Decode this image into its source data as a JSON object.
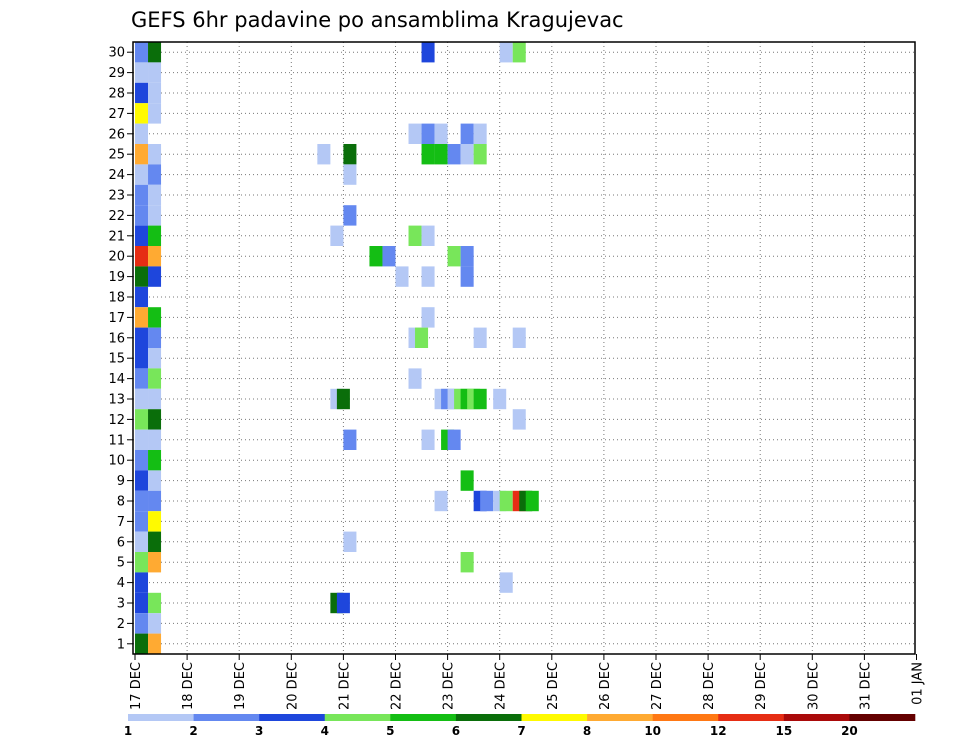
{
  "chart_data": {
    "type": "heatmap",
    "title": "GEFS 6hr padavine po ansamblima Kragujevac",
    "xlabel": "",
    "ylabel": "",
    "x_tick_labels": [
      "17 DEC",
      "18 DEC",
      "19 DEC",
      "20 DEC",
      "21 DEC",
      "22 DEC",
      "23 DEC",
      "24 DEC",
      "25 DEC",
      "26 DEC",
      "27 DEC",
      "28 DEC",
      "29 DEC",
      "30 DEC",
      "31 DEC",
      "01 JAN"
    ],
    "y_tick_labels": [
      "1",
      "2",
      "3",
      "4",
      "5",
      "6",
      "7",
      "8",
      "9",
      "10",
      "11",
      "12",
      "13",
      "14",
      "15",
      "16",
      "17",
      "18",
      "19",
      "20",
      "21",
      "22",
      "23",
      "24",
      "25",
      "26",
      "27",
      "28",
      "29",
      "30"
    ],
    "xlim": [
      0,
      60
    ],
    "ylim": [
      0.5,
      30.5
    ],
    "x_unit": "6-hour steps from 17 DEC 00Z",
    "grid": true,
    "colorbar": {
      "bounds": [
        "1",
        "2",
        "3",
        "4",
        "5",
        "6",
        "7",
        "8",
        "10",
        "12",
        "15",
        "20",
        ""
      ],
      "colors": [
        "#b4c8f5",
        "#6488f0",
        "#1e46dc",
        "#78e65a",
        "#14be14",
        "#0a6e0a",
        "#fffa00",
        "#ffaa32",
        "#ff7814",
        "#e62d14",
        "#aa0a0a",
        "#640000"
      ]
    },
    "cells": [
      {
        "m": 30,
        "t": 0,
        "c": 1
      },
      {
        "m": 30,
        "t": 1,
        "c": 5
      },
      {
        "m": 30,
        "t": 22,
        "c": 2
      },
      {
        "m": 30,
        "t": 28,
        "c": 0
      },
      {
        "m": 30,
        "t": 29,
        "c": 3
      },
      {
        "m": 29,
        "t": 0,
        "c": 0
      },
      {
        "m": 29,
        "t": 1,
        "c": 0
      },
      {
        "m": 28,
        "t": 0,
        "c": 2
      },
      {
        "m": 28,
        "t": 1,
        "c": 0
      },
      {
        "m": 27,
        "t": 0,
        "c": 6
      },
      {
        "m": 27,
        "t": 1,
        "c": 0
      },
      {
        "m": 26,
        "t": 0,
        "c": 0
      },
      {
        "m": 26,
        "t": 21,
        "c": 0
      },
      {
        "m": 26,
        "t": 22,
        "c": 1
      },
      {
        "m": 26,
        "t": 23,
        "c": 0
      },
      {
        "m": 26,
        "t": 25,
        "c": 1
      },
      {
        "m": 26,
        "t": 26,
        "c": 0
      },
      {
        "m": 25,
        "t": 0,
        "c": 7
      },
      {
        "m": 25,
        "t": 1,
        "c": 0
      },
      {
        "m": 25,
        "t": 14,
        "c": 0
      },
      {
        "m": 25,
        "t": 16,
        "c": 5
      },
      {
        "m": 25,
        "t": 22,
        "c": 4
      },
      {
        "m": 25,
        "t": 23,
        "c": 4
      },
      {
        "m": 25,
        "t": 24,
        "c": 1
      },
      {
        "m": 25,
        "t": 25,
        "c": 0
      },
      {
        "m": 25,
        "t": 26,
        "c": 3
      },
      {
        "m": 24,
        "t": 0,
        "c": 0
      },
      {
        "m": 24,
        "t": 1,
        "c": 1
      },
      {
        "m": 24,
        "t": 16,
        "c": 0
      },
      {
        "m": 23,
        "t": 0,
        "c": 1
      },
      {
        "m": 23,
        "t": 1,
        "c": 0
      },
      {
        "m": 22,
        "t": 0,
        "c": 1
      },
      {
        "m": 22,
        "t": 1,
        "c": 0
      },
      {
        "m": 22,
        "t": 16,
        "c": 1
      },
      {
        "m": 21,
        "t": 0,
        "c": 2
      },
      {
        "m": 21,
        "t": 1,
        "c": 4
      },
      {
        "m": 21,
        "t": 15,
        "c": 0
      },
      {
        "m": 21,
        "t": 21,
        "c": 3
      },
      {
        "m": 21,
        "t": 22,
        "c": 0
      },
      {
        "m": 20,
        "t": 0,
        "c": 9
      },
      {
        "m": 20,
        "t": 1,
        "c": 7
      },
      {
        "m": 20,
        "t": 18,
        "c": 4
      },
      {
        "m": 20,
        "t": 19,
        "c": 1
      },
      {
        "m": 20,
        "t": 24,
        "c": 3
      },
      {
        "m": 20,
        "t": 25,
        "c": 1
      },
      {
        "m": 19,
        "t": 0,
        "c": 5
      },
      {
        "m": 19,
        "t": 1,
        "c": 2
      },
      {
        "m": 19,
        "t": 20,
        "c": 0
      },
      {
        "m": 19,
        "t": 22,
        "c": 0
      },
      {
        "m": 19,
        "t": 25,
        "c": 1
      },
      {
        "m": 18,
        "t": 0,
        "c": 2
      },
      {
        "m": 17,
        "t": 0,
        "c": 7
      },
      {
        "m": 17,
        "t": 1,
        "c": 4
      },
      {
        "m": 17,
        "t": 22,
        "c": 0
      },
      {
        "m": 16,
        "t": 0,
        "c": 2
      },
      {
        "m": 16,
        "t": 1,
        "c": 1
      },
      {
        "m": 16,
        "t": 21,
        "c": 0
      },
      {
        "m": 16,
        "t": 21.5,
        "c": 3
      },
      {
        "m": 16,
        "t": 26,
        "c": 0
      },
      {
        "m": 16,
        "t": 29,
        "c": 0
      },
      {
        "m": 15,
        "t": 0,
        "c": 2
      },
      {
        "m": 15,
        "t": 1,
        "c": 0
      },
      {
        "m": 14,
        "t": 0,
        "c": 1
      },
      {
        "m": 14,
        "t": 1,
        "c": 3
      },
      {
        "m": 14,
        "t": 21,
        "c": 0
      },
      {
        "m": 13,
        "t": 0,
        "c": 0
      },
      {
        "m": 13,
        "t": 1,
        "c": 0
      },
      {
        "m": 13,
        "t": 15,
        "c": 0
      },
      {
        "m": 13,
        "t": 15.5,
        "c": 5
      },
      {
        "m": 13,
        "t": 23,
        "c": 0
      },
      {
        "m": 13,
        "t": 23.5,
        "c": 1
      },
      {
        "m": 13,
        "t": 24,
        "c": 0
      },
      {
        "m": 13,
        "t": 24.5,
        "c": 3
      },
      {
        "m": 13,
        "t": 25,
        "c": 4
      },
      {
        "m": 13,
        "t": 25.5,
        "c": 3
      },
      {
        "m": 13,
        "t": 26,
        "c": 4
      },
      {
        "m": 13,
        "t": 27.5,
        "c": 0
      },
      {
        "m": 12,
        "t": 0,
        "c": 3
      },
      {
        "m": 12,
        "t": 1,
        "c": 5
      },
      {
        "m": 12,
        "t": 29,
        "c": 0
      },
      {
        "m": 11,
        "t": 0,
        "c": 0
      },
      {
        "m": 11,
        "t": 1,
        "c": 0
      },
      {
        "m": 11,
        "t": 16,
        "c": 1
      },
      {
        "m": 11,
        "t": 22,
        "c": 0
      },
      {
        "m": 11,
        "t": 23.5,
        "c": 4
      },
      {
        "m": 11,
        "t": 24,
        "c": 1
      },
      {
        "m": 10,
        "t": 0,
        "c": 1
      },
      {
        "m": 10,
        "t": 1,
        "c": 4
      },
      {
        "m": 9,
        "t": 0,
        "c": 2
      },
      {
        "m": 9,
        "t": 1,
        "c": 0
      },
      {
        "m": 9,
        "t": 25,
        "c": 4
      },
      {
        "m": 8,
        "t": 0,
        "c": 1
      },
      {
        "m": 8,
        "t": 1,
        "c": 1
      },
      {
        "m": 8,
        "t": 23,
        "c": 0
      },
      {
        "m": 8,
        "t": 26,
        "c": 2
      },
      {
        "m": 8,
        "t": 26.5,
        "c": 1
      },
      {
        "m": 8,
        "t": 27.5,
        "c": 0
      },
      {
        "m": 8,
        "t": 28,
        "c": 3
      },
      {
        "m": 8,
        "t": 29,
        "c": 9
      },
      {
        "m": 8,
        "t": 29.5,
        "c": 5
      },
      {
        "m": 8,
        "t": 30,
        "c": 4
      },
      {
        "m": 7,
        "t": 0,
        "c": 1
      },
      {
        "m": 7,
        "t": 1,
        "c": 6
      },
      {
        "m": 6,
        "t": 0,
        "c": 0
      },
      {
        "m": 6,
        "t": 1,
        "c": 5
      },
      {
        "m": 6,
        "t": 16,
        "c": 0
      },
      {
        "m": 5,
        "t": 0,
        "c": 3
      },
      {
        "m": 5,
        "t": 1,
        "c": 7
      },
      {
        "m": 5,
        "t": 25,
        "c": 3
      },
      {
        "m": 4,
        "t": 0,
        "c": 2
      },
      {
        "m": 4,
        "t": 28,
        "c": 0
      },
      {
        "m": 3,
        "t": 0,
        "c": 2
      },
      {
        "m": 3,
        "t": 1,
        "c": 3
      },
      {
        "m": 3,
        "t": 15,
        "c": 5
      },
      {
        "m": 3,
        "t": 15.5,
        "c": 2
      },
      {
        "m": 2,
        "t": 0,
        "c": 1
      },
      {
        "m": 2,
        "t": 1,
        "c": 0
      },
      {
        "m": 1,
        "t": 0,
        "c": 5
      },
      {
        "m": 1,
        "t": 1,
        "c": 7
      }
    ]
  }
}
